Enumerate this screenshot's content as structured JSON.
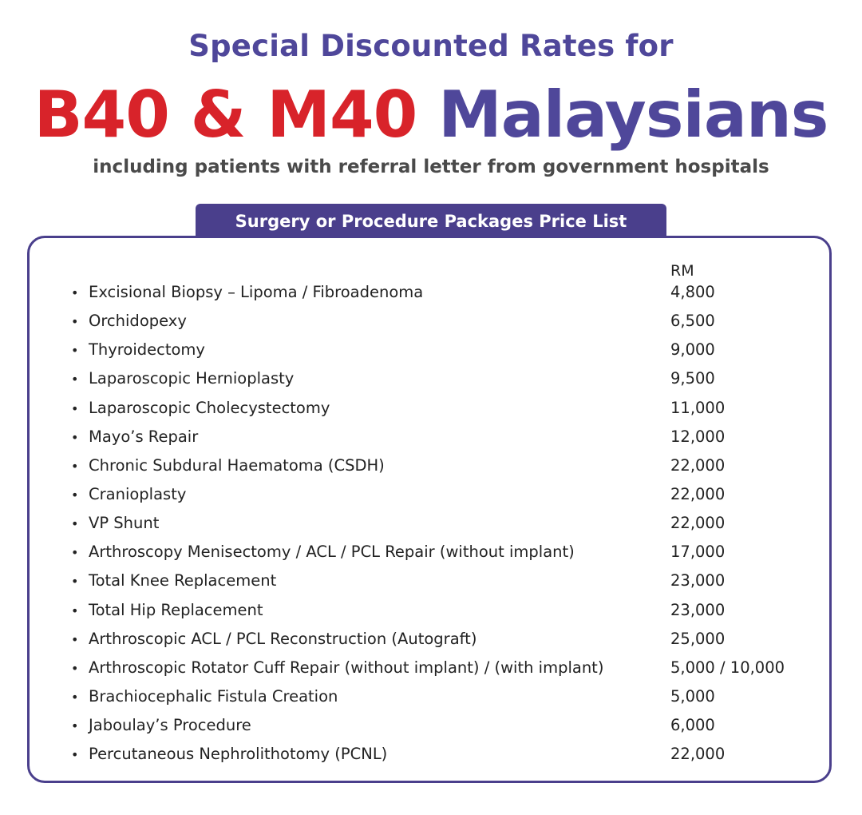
{
  "header": {
    "line1": "Special Discounted Rates for",
    "line2_red": "B40 & M40",
    "line2_blue": "Malaysians",
    "line3": "including patients with referral letter from government hospitals"
  },
  "price_list": {
    "tab_label": "Surgery or Procedure Packages Price List",
    "currency_header": "RM",
    "bullet_char": "•",
    "items": [
      {
        "procedure": "Excisional Biopsy – Lipoma / Fibroadenoma",
        "price": "4,800"
      },
      {
        "procedure": "Orchidopexy",
        "price": "6,500"
      },
      {
        "procedure": "Thyroidectomy",
        "price": "9,000"
      },
      {
        "procedure": "Laparoscopic Hernioplasty",
        "price": "9,500"
      },
      {
        "procedure": "Laparoscopic Cholecystectomy",
        "price": "11,000"
      },
      {
        "procedure": "Mayo’s Repair",
        "price": "12,000"
      },
      {
        "procedure": "Chronic Subdural Haematoma (CSDH)",
        "price": "22,000"
      },
      {
        "procedure": "Cranioplasty",
        "price": "22,000"
      },
      {
        "procedure": "VP Shunt",
        "price": "22,000"
      },
      {
        "procedure": "Arthroscopy Menisectomy / ACL / PCL Repair (without implant)",
        "price": "17,000"
      },
      {
        "procedure": "Total Knee Replacement",
        "price": "23,000"
      },
      {
        "procedure": "Total Hip Replacement",
        "price": "23,000"
      },
      {
        "procedure": "Arthroscopic ACL / PCL Reconstruction (Autograft)",
        "price": "25,000"
      },
      {
        "procedure": "Arthroscopic Rotator Cuff Repair (without implant) / (with implant)",
        "price": "5,000 / 10,000"
      },
      {
        "procedure": "Brachiocephalic Fistula Creation",
        "price": "5,000"
      },
      {
        "procedure": "Jaboulay’s Procedure",
        "price": "6,000"
      },
      {
        "procedure": "Percutaneous Nephrolithotomy (PCNL)",
        "price": "22,000"
      }
    ]
  },
  "colors": {
    "accent_red": "#d8232a",
    "accent_purple": "#4f479a",
    "panel_border": "#4a3f8c"
  }
}
